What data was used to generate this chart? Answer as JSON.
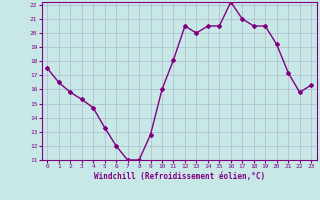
{
  "x": [
    0,
    1,
    2,
    3,
    4,
    5,
    6,
    7,
    8,
    9,
    10,
    11,
    12,
    13,
    14,
    15,
    16,
    17,
    18,
    19,
    20,
    21,
    22,
    23
  ],
  "y": [
    17.5,
    16.5,
    15.8,
    15.3,
    14.7,
    13.3,
    12.0,
    11.0,
    11.0,
    12.8,
    16.0,
    18.1,
    20.5,
    20.0,
    20.5,
    20.5,
    22.2,
    21.0,
    20.5,
    20.5,
    19.2,
    17.2,
    15.8,
    16.3
  ],
  "color": "#800080",
  "bg_color": "#c8e8e8",
  "grid_color": "#b0b8cc",
  "ylim": [
    11,
    22
  ],
  "xlim": [
    -0.5,
    23.5
  ],
  "yticks": [
    11,
    12,
    13,
    14,
    15,
    16,
    17,
    18,
    19,
    20,
    21,
    22
  ],
  "xticks": [
    0,
    1,
    2,
    3,
    4,
    5,
    6,
    7,
    8,
    9,
    10,
    11,
    12,
    13,
    14,
    15,
    16,
    17,
    18,
    19,
    20,
    21,
    22,
    23
  ],
  "xlabel": "Windchill (Refroidissement éolien,°C)",
  "line_width": 1.0,
  "marker": "D",
  "marker_size": 2.0
}
